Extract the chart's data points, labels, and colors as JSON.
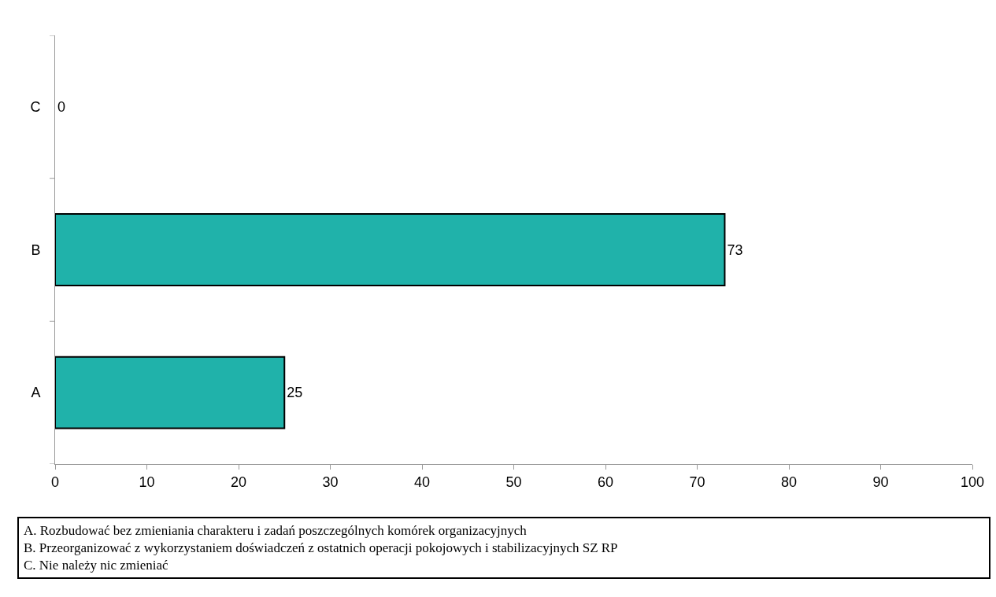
{
  "chart_data": {
    "type": "bar",
    "orientation": "horizontal",
    "categories": [
      "C",
      "B",
      "A"
    ],
    "values": [
      0,
      73,
      25
    ],
    "color": "#20b2aa",
    "xlim": [
      0,
      100
    ],
    "xticks": [
      0,
      10,
      20,
      30,
      40,
      50,
      60,
      70,
      80,
      90,
      100
    ],
    "data_labels": true,
    "annotations": [
      "A. Rozbudować bez zmieniania charakteru i zadań poszczególnych komórek organizacyjnych",
      "B. Przeorganizować z wykorzystaniem doświadczeń z ostatnich operacji pokojowych i stabilizacyjnych SZ RP",
      "C. Nie należy nic zmieniać"
    ]
  }
}
